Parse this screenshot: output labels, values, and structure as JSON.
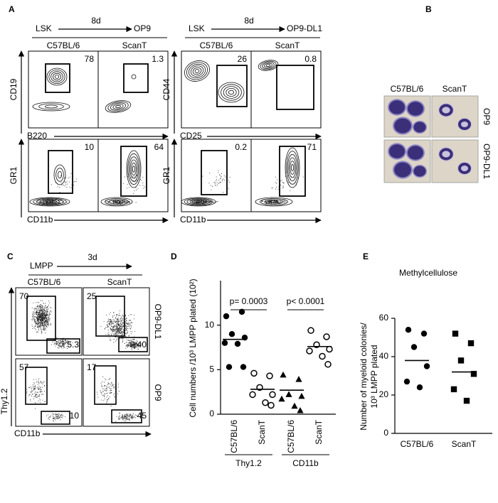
{
  "figure": {
    "panel_labels": [
      "A",
      "B",
      "C",
      "D",
      "E"
    ],
    "panel_a": [
      {
        "start": "LSK",
        "time": "8d",
        "culture": "OP9",
        "strains": [
          "C57BL/6",
          "ScanT"
        ],
        "rows": [
          {
            "y_label": "CD19",
            "x_label": "B220",
            "gates": [
              "78",
              "1.3"
            ]
          },
          {
            "y_label": "GR1",
            "x_label": "CD11b",
            "gates": [
              "10",
              "64"
            ]
          }
        ]
      },
      {
        "start": "LSK",
        "time": "8d",
        "culture": "OP9-DL1",
        "strains": [
          "C57BL/6",
          "ScanT"
        ],
        "rows": [
          {
            "y_label": "CD44",
            "x_label": "CD25",
            "gates": [
              "26",
              "0.8"
            ]
          },
          {
            "y_label": "GR1",
            "x_label": "CD11b",
            "gates": [
              "0.2",
              "71"
            ]
          }
        ]
      }
    ],
    "panel_b": {
      "columns": [
        "C57BL/6",
        "ScanT"
      ],
      "rows": [
        "OP9",
        "OP9-DL1"
      ]
    },
    "panel_c": {
      "start": "LMPP",
      "time": "3d",
      "strains": [
        "C57BL/6",
        "ScanT"
      ],
      "rows": [
        "OP9-DL1",
        "OP9"
      ],
      "y_label": "Thy1.2",
      "x_label": "CD11b",
      "gates": [
        [
          [
            "70",
            "5.3"
          ],
          [
            "25",
            "40"
          ]
        ],
        [
          [
            "57",
            "10"
          ],
          [
            "17",
            "45"
          ]
        ]
      ]
    }
  },
  "chart_data": [
    {
      "type": "dot",
      "y_label": "Cell numbers /10³ LMPP plated (10²)",
      "categories": [
        "C57BL/6",
        "ScanT",
        "C57BL/6",
        "ScanT"
      ],
      "group_labels": [
        "Thy1.2",
        "CD11b"
      ],
      "markers": [
        "filled-circle",
        "open-circle",
        "filled-triangle",
        "open-circle"
      ],
      "points": [
        [
          11.0,
          11.5,
          9.0,
          8.6,
          8.0,
          7.9,
          5.3,
          5.3
        ],
        [
          4.6,
          4.3,
          3.0,
          2.2,
          2.2,
          1.3,
          1.0
        ],
        [
          4.4,
          3.9,
          2.2,
          2.0,
          1.7,
          0.9,
          0.4
        ],
        [
          9.4,
          8.7,
          7.8,
          7.3,
          7.1,
          6.5,
          5.6
        ]
      ],
      "means": [
        8.4,
        2.8,
        2.7,
        7.6
      ],
      "annotations": [
        "p= 0.0003",
        "p< 0.0001"
      ],
      "ylim": [
        0,
        15
      ],
      "yticks": [
        0,
        5,
        10
      ]
    },
    {
      "type": "dot",
      "title": "Methylcellulose",
      "y_label": [
        "Number of myeloid colonies/",
        "10³ LMPP plated"
      ],
      "categories": [
        "C57BL/6",
        "ScanT"
      ],
      "markers": [
        "filled-circle",
        "filled-square"
      ],
      "points": [
        [
          54,
          52,
          45,
          35,
          27,
          24
        ],
        [
          52,
          47,
          38,
          31,
          23,
          17
        ]
      ],
      "means": [
        38,
        32
      ],
      "ylim": [
        0,
        60
      ],
      "yticks": [
        0,
        20,
        40,
        60
      ]
    }
  ]
}
